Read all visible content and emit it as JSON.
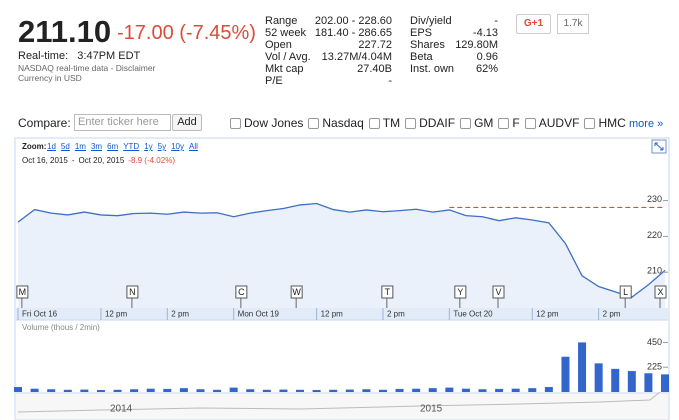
{
  "quote": {
    "price": "211.10",
    "change": "-17.00 (-7.45%)",
    "realtime": "Real-time:   3:47PM EDT",
    "source": "NASDAQ real-time data - Disclaimer",
    "currency": "Currency in USD",
    "stats_left": [
      [
        "Range",
        "202.00 - 228.60"
      ],
      [
        "52 week",
        "181.40 - 286.65"
      ],
      [
        "Open",
        "227.72"
      ],
      [
        "Vol / Avg.",
        "13.27M/4.04M"
      ],
      [
        "Mkt cap",
        "27.40B"
      ],
      [
        "P/E",
        "-"
      ]
    ],
    "stats_right": [
      [
        "Div/yield",
        "-"
      ],
      [
        "EPS",
        "-4.13"
      ],
      [
        "Shares",
        "129.80M"
      ],
      [
        "Beta",
        "0.96"
      ],
      [
        "Inst. own",
        "62%"
      ]
    ],
    "plus_one": "G+1",
    "plus_count": "1.7k"
  },
  "compare": {
    "label": "Compare:",
    "placeholder": "Enter ticker here",
    "button": "Add",
    "tickers": [
      "Dow Jones",
      "Nasdaq",
      "TM",
      "DDAIF",
      "GM",
      "F",
      "AUDVF",
      "HMC"
    ],
    "more": "more »"
  },
  "zoom": {
    "label": "Zoom:",
    "options": [
      "1d",
      "5d",
      "1m",
      "3m",
      "6m",
      "YTD",
      "1y",
      "5y",
      "10y",
      "All"
    ],
    "range_start": "Oct 16, 2015",
    "range_sep": "-",
    "range_end": "Oct 20, 2015",
    "range_change": "-8.9 (-4.02%)"
  },
  "chart_data": [
    {
      "type": "line",
      "color": "#3d6fc4",
      "fill": "#eaf1fb",
      "x": [
        0,
        30,
        60,
        90,
        120,
        150,
        180,
        210,
        240,
        270,
        300,
        330,
        360,
        390,
        420,
        450,
        480,
        510,
        540,
        570,
        600,
        630,
        660,
        690,
        720,
        750,
        780,
        810,
        840,
        870,
        900,
        930,
        960,
        990,
        1020,
        1050,
        1080,
        1110,
        1140,
        1170
      ],
      "values": [
        224,
        227.5,
        226.5,
        226,
        226.8,
        226,
        225.8,
        226.4,
        226.5,
        226.2,
        226.8,
        226.5,
        226.6,
        225.5,
        226.5,
        227.2,
        227.8,
        228.8,
        229.2,
        227.5,
        226.8,
        227.4,
        226.9,
        227.2,
        227.6,
        226.8,
        227.4,
        225.8,
        225.5,
        224.4,
        225.2,
        224.6,
        223.8,
        218,
        209,
        206,
        204.5,
        203,
        206.5,
        210.5
      ],
      "xlim": [
        0,
        1170
      ],
      "xticks": [
        {
          "value": 0,
          "label": "Fri Oct 16"
        },
        {
          "value": 150,
          "label": "12 pm"
        },
        {
          "value": 270,
          "label": "2 pm"
        },
        {
          "value": 390,
          "label": "Mon Oct 19"
        },
        {
          "value": 540,
          "label": "12 pm"
        },
        {
          "value": 660,
          "label": "2 pm"
        },
        {
          "value": 780,
          "label": "Tue Oct 20"
        },
        {
          "value": 930,
          "label": "12 pm"
        },
        {
          "value": 1050,
          "label": "2 pm"
        }
      ],
      "ylim": [
        200,
        238
      ],
      "yticks": [
        210,
        220,
        230
      ],
      "previous_close": 228.1,
      "previous_close_color": "#dd4b39",
      "flags": [
        {
          "label": "M",
          "x": 7
        },
        {
          "label": "N",
          "x": 206
        },
        {
          "label": "C",
          "x": 403
        },
        {
          "label": "W",
          "x": 503
        },
        {
          "label": "T",
          "x": 667
        },
        {
          "label": "Y",
          "x": 799
        },
        {
          "label": "V",
          "x": 868
        },
        {
          "label": "L",
          "x": 1098
        },
        {
          "label": "X",
          "x": 1161
        }
      ]
    },
    {
      "type": "bar",
      "title": "Volume (thous / 2min)",
      "color": "#3366cc",
      "x": [
        0,
        30,
        60,
        90,
        120,
        150,
        180,
        210,
        240,
        270,
        300,
        330,
        360,
        390,
        420,
        450,
        480,
        510,
        540,
        570,
        600,
        630,
        660,
        690,
        720,
        750,
        780,
        810,
        840,
        870,
        900,
        930,
        960,
        990,
        1020,
        1050,
        1080,
        1110,
        1140,
        1170
      ],
      "values": [
        45,
        30,
        25,
        20,
        22,
        18,
        20,
        25,
        30,
        28,
        35,
        25,
        20,
        40,
        25,
        20,
        22,
        20,
        18,
        20,
        22,
        25,
        20,
        28,
        30,
        35,
        40,
        30,
        25,
        28,
        30,
        35,
        45,
        320,
        450,
        260,
        210,
        190,
        170,
        160
      ],
      "xlim": [
        0,
        1170
      ],
      "ylim": [
        0,
        490
      ],
      "yticks": [
        225,
        450
      ]
    }
  ],
  "navigator": {
    "labels": [
      "2014",
      "2015"
    ]
  }
}
